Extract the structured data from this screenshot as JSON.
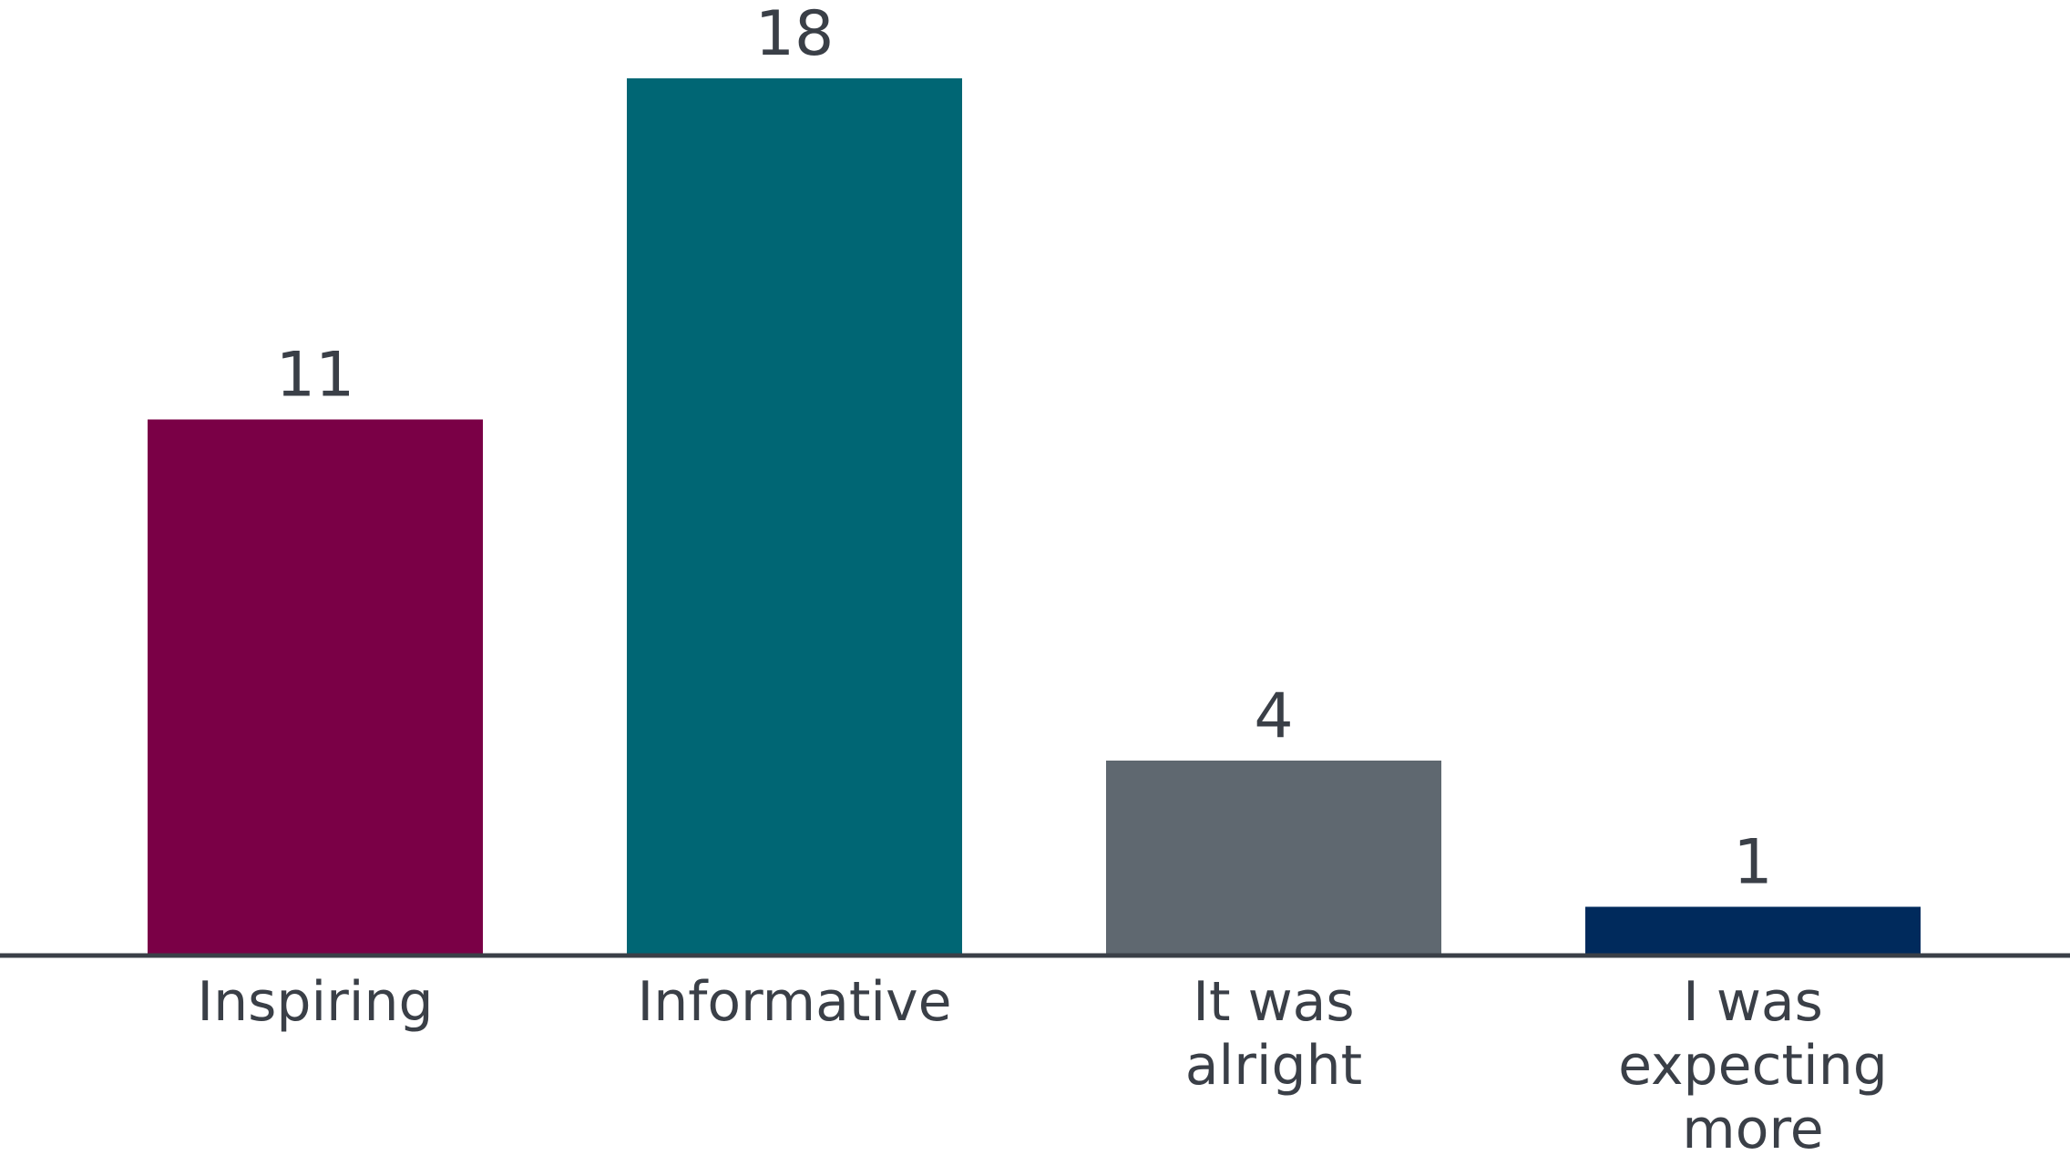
{
  "chart_data": {
    "type": "bar",
    "categories": [
      "Inspiring",
      "Informative",
      "It was alright",
      "I was expecting more"
    ],
    "category_label_lines": [
      [
        "Inspiring"
      ],
      [
        "Informative"
      ],
      [
        "It was",
        "alright"
      ],
      [
        "I was",
        "expecting",
        "more"
      ]
    ],
    "values": [
      11,
      18,
      4,
      1
    ],
    "value_labels": [
      "11",
      "18",
      "4",
      "1"
    ],
    "colors": [
      "#7a0046",
      "#006674",
      "#5f6870",
      "#002a5c"
    ],
    "axis_color": "#3a3f47",
    "text_color": "#3a3f47",
    "ylim": [
      0,
      18
    ],
    "grid": false,
    "title": "",
    "xlabel": "",
    "ylabel": ""
  }
}
